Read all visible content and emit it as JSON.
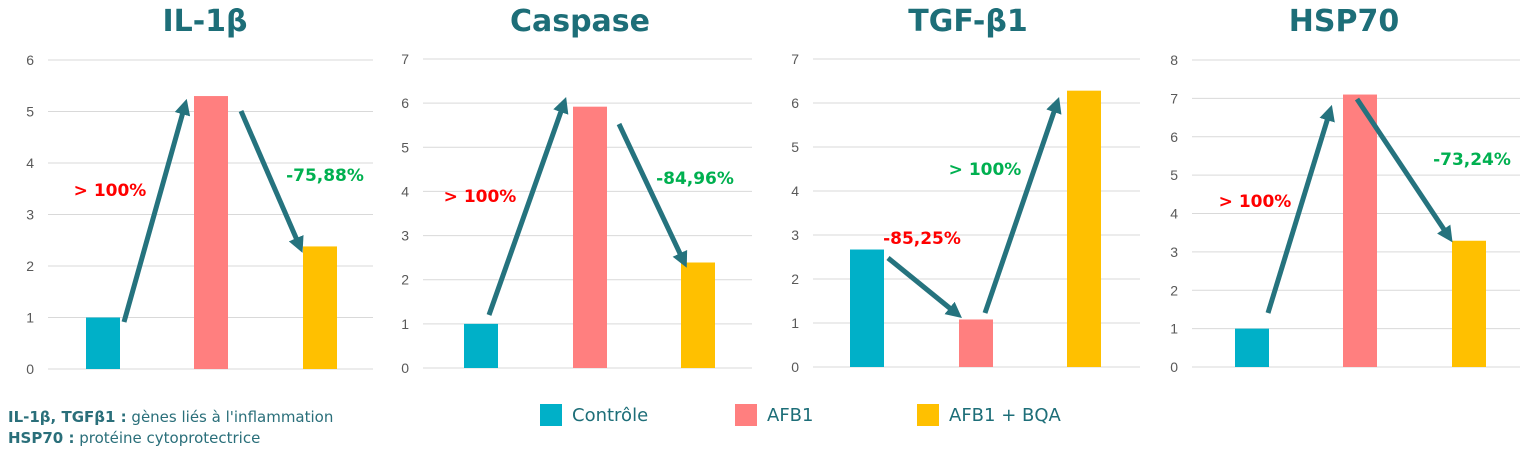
{
  "chart_data": [
    {
      "type": "bar",
      "title": "IL-1β",
      "categories": [
        "Contrôle",
        "AFB1",
        "AFB1 + BQA"
      ],
      "values": [
        1.0,
        5.3,
        2.38
      ],
      "ylim": [
        0,
        6
      ],
      "yticks": [
        0,
        1,
        2,
        3,
        4,
        5,
        6
      ],
      "grid": true,
      "annotations": [
        {
          "text": "> 100%",
          "color": "#ff0000"
        },
        {
          "text": "-75,88%",
          "color": "#00b050"
        }
      ]
    },
    {
      "type": "bar",
      "title": "Caspase",
      "categories": [
        "Contrôle",
        "AFB1",
        "AFB1 + BQA"
      ],
      "values": [
        1.0,
        5.92,
        2.39
      ],
      "ylim": [
        0,
        7
      ],
      "yticks": [
        0,
        1,
        2,
        3,
        4,
        5,
        6,
        7
      ],
      "grid": true,
      "annotations": [
        {
          "text": "> 100%",
          "color": "#ff0000"
        },
        {
          "text": "-84,96%",
          "color": "#00b050"
        }
      ]
    },
    {
      "type": "bar",
      "title": "TGF-β1",
      "categories": [
        "Contrôle",
        "AFB1",
        "AFB1 + BQA"
      ],
      "values": [
        2.67,
        1.08,
        6.28
      ],
      "ylim": [
        0,
        7
      ],
      "yticks": [
        0,
        1,
        2,
        3,
        4,
        5,
        6,
        7
      ],
      "grid": true,
      "annotations": [
        {
          "text": "-85,25%",
          "color": "#ff0000"
        },
        {
          "text": "> 100%",
          "color": "#00b050"
        }
      ]
    },
    {
      "type": "bar",
      "title": "HSP70",
      "categories": [
        "Contrôle",
        "AFB1",
        "AFB1 + BQA"
      ],
      "values": [
        1.0,
        7.1,
        3.29
      ],
      "ylim": [
        0,
        8
      ],
      "yticks": [
        0,
        1,
        2,
        3,
        4,
        5,
        6,
        7,
        8
      ],
      "grid": true,
      "annotations": [
        {
          "text": "> 100%",
          "color": "#ff0000"
        },
        {
          "text": "-73,24%",
          "color": "#00b050"
        }
      ]
    }
  ],
  "legend": [
    {
      "label": "Contrôle",
      "color": "#00b0c8"
    },
    {
      "label": "AFB1",
      "color": "#ff7f7f"
    },
    {
      "label": "AFB1 + BQA",
      "color": "#ffc000"
    }
  ],
  "footnote": {
    "line1_bold": "IL-1β, TGFβ1 :",
    "line1_text": " gènes liés à l'inflammation",
    "line2_bold": "HSP70 :",
    "line2_text": " protéine cytoprotectrice"
  },
  "colors": {
    "title": "#1d6e78",
    "arrow": "#25737e",
    "grid": "#d9d9d9"
  }
}
